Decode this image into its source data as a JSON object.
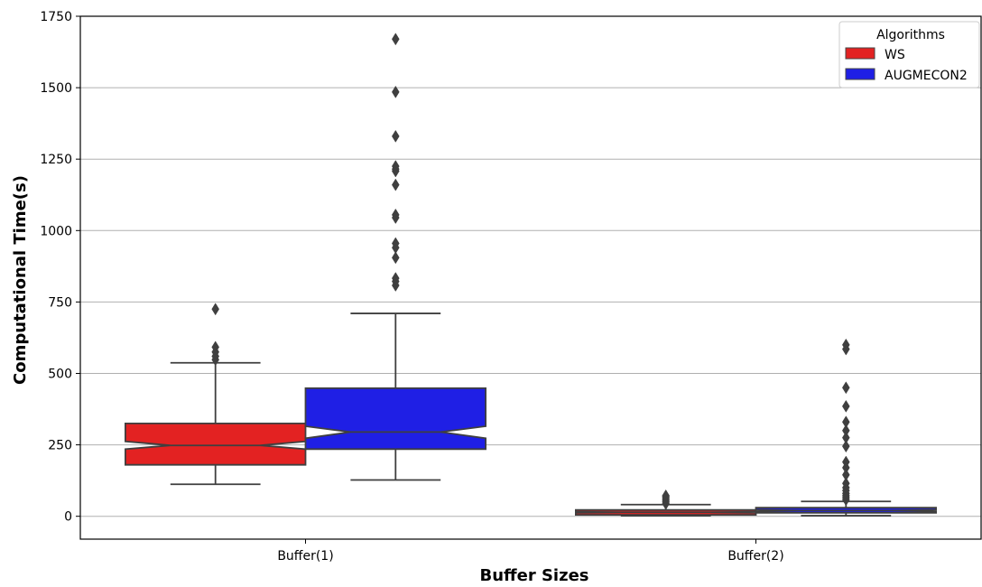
{
  "chart_data": {
    "type": "box",
    "xlabel": "Buffer Sizes",
    "ylabel": "Computational Time(s)",
    "categories": [
      "Buffer(1)",
      "Buffer(2)"
    ],
    "ylim": [
      -80,
      1750
    ],
    "yticks": [
      0,
      250,
      500,
      750,
      1000,
      1250,
      1500,
      1750
    ],
    "grid": "horizontal",
    "notched": true,
    "legend": {
      "title": "Algorithms",
      "position": "top-right",
      "entries": [
        "WS",
        "AUGMECON2"
      ]
    },
    "series": [
      {
        "name": "WS",
        "color": "#e32222",
        "boxes": [
          {
            "category": "Buffer(1)",
            "q1": 180,
            "median": 248,
            "q3": 325,
            "notch_low": 235,
            "notch_high": 262,
            "whisker_low": 112,
            "whisker_high": 537,
            "outliers": [
              548,
              560,
              575,
              592,
              725
            ]
          },
          {
            "category": "Buffer(2)",
            "q1": 5,
            "median": 14,
            "q3": 22,
            "notch_low": 12,
            "notch_high": 16,
            "whisker_low": 2,
            "whisker_high": 41,
            "outliers": [
              44,
              50,
              56,
              62,
              68,
              72
            ]
          }
        ]
      },
      {
        "name": "AUGMECON2",
        "color": "#1f1fe5",
        "boxes": [
          {
            "category": "Buffer(1)",
            "q1": 235,
            "median": 295,
            "q3": 448,
            "notch_low": 273,
            "notch_high": 315,
            "whisker_low": 127,
            "whisker_high": 710,
            "outliers": [
              808,
              822,
              833,
              905,
              940,
              955,
              1045,
              1055,
              1160,
              1208,
              1215,
              1225,
              1330,
              1485,
              1670
            ]
          },
          {
            "category": "Buffer(2)",
            "q1": 12,
            "median": 20,
            "q3": 30,
            "notch_low": 17,
            "notch_high": 23,
            "whisker_low": 2,
            "whisker_high": 52,
            "outliers": [
              58,
              65,
              72,
              80,
              90,
              100,
              115,
              145,
              170,
              190,
              245,
              275,
              300,
              330,
              385,
              450,
              585,
              600
            ]
          }
        ]
      }
    ]
  }
}
